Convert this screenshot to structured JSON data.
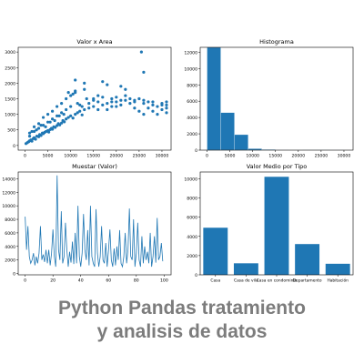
{
  "caption": {
    "line1": "Python Pandas tratamiento",
    "line2": "y analisis de datos"
  },
  "colors": {
    "series": "#1f77b4",
    "axes": "#000000",
    "caption": "#7c7c7c"
  },
  "chart_data": [
    {
      "id": "scatter",
      "type": "scatter",
      "title": "Valor x Area",
      "xlim": [
        -1500,
        32000
      ],
      "ylim": [
        -150,
        3150
      ],
      "xticks": [
        0,
        5000,
        10000,
        15000,
        20000,
        25000,
        30000
      ],
      "yticks": [
        0,
        500,
        1000,
        1500,
        2000,
        2500,
        3000
      ],
      "points": [
        [
          200,
          60
        ],
        [
          500,
          90
        ],
        [
          800,
          120
        ],
        [
          1000,
          150
        ],
        [
          1300,
          180
        ],
        [
          1500,
          140
        ],
        [
          1800,
          220
        ],
        [
          2000,
          250
        ],
        [
          2300,
          200
        ],
        [
          2600,
          300
        ],
        [
          3000,
          280
        ],
        [
          3200,
          350
        ],
        [
          3500,
          320
        ],
        [
          3800,
          400
        ],
        [
          4000,
          380
        ],
        [
          4300,
          420
        ],
        [
          4600,
          450
        ],
        [
          5000,
          480
        ],
        [
          5200,
          430
        ],
        [
          5500,
          510
        ],
        [
          5800,
          550
        ],
        [
          6000,
          520
        ],
        [
          6300,
          600
        ],
        [
          6600,
          580
        ],
        [
          7000,
          640
        ],
        [
          7300,
          700
        ],
        [
          7600,
          660
        ],
        [
          8000,
          720
        ],
        [
          8300,
          800
        ],
        [
          8600,
          760
        ],
        [
          9000,
          850
        ],
        [
          9500,
          900
        ],
        [
          10000,
          950
        ],
        [
          10500,
          880
        ],
        [
          11000,
          1000
        ],
        [
          11500,
          1050
        ],
        [
          12000,
          1100
        ],
        [
          12500,
          980
        ],
        [
          13000,
          1150
        ],
        [
          14000,
          1200
        ],
        [
          15000,
          1250
        ],
        [
          16000,
          1150
        ],
        [
          17000,
          1300
        ],
        [
          18000,
          1350
        ],
        [
          19000,
          1250
        ],
        [
          20000,
          1400
        ],
        [
          21000,
          1300
        ],
        [
          22000,
          1450
        ],
        [
          23000,
          1350
        ],
        [
          24000,
          1200
        ],
        [
          25000,
          1100
        ],
        [
          26000,
          1000
        ],
        [
          27000,
          1200
        ],
        [
          28000,
          1100
        ],
        [
          29000,
          1000
        ],
        [
          30000,
          1150
        ],
        [
          31000,
          1050
        ],
        [
          4000,
          900
        ],
        [
          5000,
          1000
        ],
        [
          6000,
          1100
        ],
        [
          7000,
          1250
        ],
        [
          8000,
          1350
        ],
        [
          9000,
          1500
        ],
        [
          10000,
          1600
        ],
        [
          10500,
          1650
        ],
        [
          11000,
          1700
        ],
        [
          13000,
          1800
        ],
        [
          9500,
          1700
        ],
        [
          11000,
          1750
        ],
        [
          15000,
          1450
        ],
        [
          16000,
          1600
        ],
        [
          17000,
          1550
        ],
        [
          19000,
          1500
        ],
        [
          20000,
          1550
        ],
        [
          21000,
          1450
        ],
        [
          22000,
          1600
        ],
        [
          24000,
          1400
        ],
        [
          25000,
          1500
        ],
        [
          26000,
          1450
        ],
        [
          28000,
          1400
        ],
        [
          30000,
          1350
        ],
        [
          31000,
          1400
        ],
        [
          31000,
          1300
        ],
        [
          31000,
          1200
        ],
        [
          17000,
          2050
        ],
        [
          18000,
          1950
        ],
        [
          21000,
          1900
        ],
        [
          22000,
          1800
        ],
        [
          25500,
          3000
        ],
        [
          26000,
          2350
        ],
        [
          11000,
          2100
        ],
        [
          13000,
          2000
        ],
        [
          2000,
          600
        ],
        [
          3000,
          700
        ],
        [
          3500,
          650
        ],
        [
          4500,
          600
        ],
        [
          5500,
          750
        ],
        [
          6500,
          800
        ],
        [
          7500,
          950
        ],
        [
          8500,
          1000
        ],
        [
          1000,
          400
        ],
        [
          1500,
          450
        ],
        [
          2500,
          500
        ],
        [
          12000,
          1300
        ],
        [
          14000,
          1350
        ],
        [
          15000,
          1500
        ],
        [
          16000,
          1400
        ],
        [
          18000,
          1150
        ],
        [
          19000,
          1400
        ],
        [
          20000,
          1250
        ],
        [
          23000,
          1500
        ],
        [
          24000,
          1450
        ],
        [
          26000,
          1350
        ],
        [
          27000,
          1400
        ],
        [
          28000,
          1300
        ],
        [
          29000,
          1250
        ],
        [
          30000,
          1300
        ],
        [
          12500,
          1250
        ],
        [
          13500,
          1500
        ],
        [
          11500,
          1350
        ],
        [
          10000,
          1250
        ],
        [
          9000,
          1150
        ],
        [
          8000,
          1050
        ],
        [
          7000,
          950
        ],
        [
          6000,
          850
        ],
        [
          5000,
          750
        ],
        [
          4000,
          650
        ],
        [
          3000,
          550
        ],
        [
          2000,
          450
        ],
        [
          1000,
          300
        ]
      ]
    },
    {
      "id": "histogram",
      "type": "bar",
      "title": "Histograma",
      "xlim": [
        -1500,
        32000
      ],
      "ylim": [
        0,
        12600
      ],
      "xticks": [
        0,
        5000,
        10000,
        15000,
        20000,
        25000,
        30000
      ],
      "yticks": [
        0,
        2000,
        4000,
        6000,
        8000,
        10000,
        12000
      ],
      "bins": [
        {
          "from": 0,
          "to": 3000,
          "value": 12600
        },
        {
          "from": 3000,
          "to": 6000,
          "value": 4600
        },
        {
          "from": 6000,
          "to": 9000,
          "value": 1900
        },
        {
          "from": 9000,
          "to": 12000,
          "value": 180
        },
        {
          "from": 12000,
          "to": 15000,
          "value": 80
        },
        {
          "from": 15000,
          "to": 18000,
          "value": 40
        },
        {
          "from": 18000,
          "to": 21000,
          "value": 20
        },
        {
          "from": 21000,
          "to": 24000,
          "value": 10
        },
        {
          "from": 24000,
          "to": 27000,
          "value": 10
        },
        {
          "from": 27000,
          "to": 30000,
          "value": 5
        }
      ]
    },
    {
      "id": "line",
      "type": "line",
      "title": "Muestar (Valor)",
      "xlim": [
        -5,
        105
      ],
      "ylim": [
        -200,
        15000
      ],
      "xticks": [
        0,
        20,
        40,
        60,
        80,
        100
      ],
      "yticks": [
        0,
        2000,
        4000,
        6000,
        8000,
        10000,
        12000,
        14000
      ],
      "x": [
        0,
        1,
        2,
        3,
        4,
        5,
        6,
        7,
        8,
        9,
        10,
        11,
        12,
        13,
        14,
        15,
        16,
        17,
        18,
        19,
        20,
        21,
        22,
        23,
        24,
        25,
        26,
        27,
        28,
        29,
        30,
        31,
        32,
        33,
        34,
        35,
        36,
        37,
        38,
        39,
        40,
        41,
        42,
        43,
        44,
        45,
        46,
        47,
        48,
        49,
        50,
        51,
        52,
        53,
        54,
        55,
        56,
        57,
        58,
        59,
        60,
        61,
        62,
        63,
        64,
        65,
        66,
        67,
        68,
        69,
        70,
        71,
        72,
        73,
        74,
        75,
        76,
        77,
        78,
        79,
        80,
        81,
        82,
        83,
        84,
        85,
        86,
        87,
        88,
        89,
        90,
        91,
        92,
        93,
        94,
        95,
        96,
        97,
        98,
        99
      ],
      "y": [
        8400,
        3500,
        7000,
        2500,
        1500,
        2000,
        3000,
        1200,
        2500,
        1500,
        3000,
        7000,
        2000,
        2800,
        1700,
        3500,
        1500,
        3500,
        1200,
        3000,
        6500,
        2500,
        1000,
        14500,
        3500,
        2000,
        9200,
        1500,
        2500,
        7500,
        3500,
        1000,
        3200,
        1600,
        4700,
        1400,
        6000,
        1500,
        10000,
        2500,
        1000,
        3000,
        8800,
        3500,
        2000,
        6400,
        1200,
        10000,
        2500,
        1500,
        1000,
        9500,
        3000,
        1000,
        2500,
        7000,
        2000,
        1500,
        4500,
        1000,
        3500,
        6500,
        2000,
        1000,
        3700,
        1200,
        4000,
        2000,
        6400,
        1500,
        1000,
        2500,
        6000,
        1500,
        3500,
        9600,
        2500,
        2000,
        8000,
        1000,
        3000,
        7500,
        2000,
        1000,
        5500,
        1500,
        4000,
        2000,
        3200,
        1500,
        6000,
        1000,
        2500,
        5500,
        1600,
        8200,
        2000,
        2500,
        4500,
        1800
      ]
    },
    {
      "id": "bar",
      "type": "bar",
      "title": "Valor Medio por Tipo",
      "categories": [
        "Casa",
        "Casa de vila",
        "Casa en condominio",
        "Departamento",
        "Habitación"
      ],
      "values": [
        4900,
        1200,
        10200,
        3200,
        1150
      ],
      "ylim": [
        0,
        10700
      ],
      "yticks": [
        0,
        2000,
        4000,
        6000,
        8000,
        10000
      ]
    }
  ]
}
